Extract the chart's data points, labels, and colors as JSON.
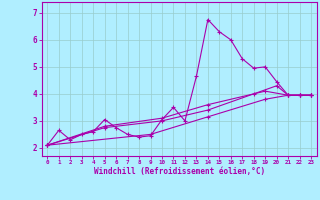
{
  "xlabel": "Windchill (Refroidissement éolien,°C)",
  "background_color": "#b0eeff",
  "line_color": "#aa00aa",
  "grid_color": "#99cccc",
  "xlim": [
    -0.5,
    23.5
  ],
  "ylim": [
    1.7,
    7.4
  ],
  "yticks": [
    2,
    3,
    4,
    5,
    6,
    7
  ],
  "xticks": [
    0,
    1,
    2,
    3,
    4,
    5,
    6,
    7,
    8,
    9,
    10,
    11,
    12,
    13,
    14,
    15,
    16,
    17,
    18,
    19,
    20,
    21,
    22,
    23
  ],
  "lines": [
    [
      [
        0,
        2.1
      ],
      [
        1,
        2.65
      ],
      [
        2,
        2.3
      ],
      [
        3,
        2.5
      ],
      [
        4,
        2.6
      ],
      [
        5,
        3.05
      ],
      [
        6,
        2.75
      ],
      [
        7,
        2.5
      ],
      [
        8,
        2.4
      ],
      [
        9,
        2.45
      ],
      [
        10,
        3.05
      ],
      [
        11,
        3.5
      ],
      [
        12,
        3.0
      ],
      [
        13,
        4.65
      ],
      [
        14,
        6.75
      ],
      [
        15,
        6.3
      ],
      [
        16,
        6.0
      ],
      [
        17,
        5.3
      ],
      [
        18,
        4.95
      ],
      [
        19,
        5.0
      ],
      [
        20,
        4.45
      ],
      [
        21,
        3.95
      ],
      [
        22,
        3.95
      ],
      [
        23,
        3.95
      ]
    ],
    [
      [
        0,
        2.1
      ],
      [
        5,
        2.8
      ],
      [
        10,
        3.1
      ],
      [
        14,
        3.6
      ],
      [
        19,
        4.1
      ],
      [
        21,
        3.95
      ],
      [
        22,
        3.95
      ],
      [
        23,
        3.95
      ]
    ],
    [
      [
        0,
        2.1
      ],
      [
        5,
        2.75
      ],
      [
        10,
        3.0
      ],
      [
        14,
        3.4
      ],
      [
        18,
        4.0
      ],
      [
        20,
        4.3
      ],
      [
        21,
        3.95
      ],
      [
        22,
        3.95
      ],
      [
        23,
        3.95
      ]
    ],
    [
      [
        0,
        2.1
      ],
      [
        9,
        2.5
      ],
      [
        14,
        3.15
      ],
      [
        19,
        3.8
      ],
      [
        21,
        3.95
      ],
      [
        22,
        3.95
      ],
      [
        23,
        3.95
      ]
    ]
  ]
}
